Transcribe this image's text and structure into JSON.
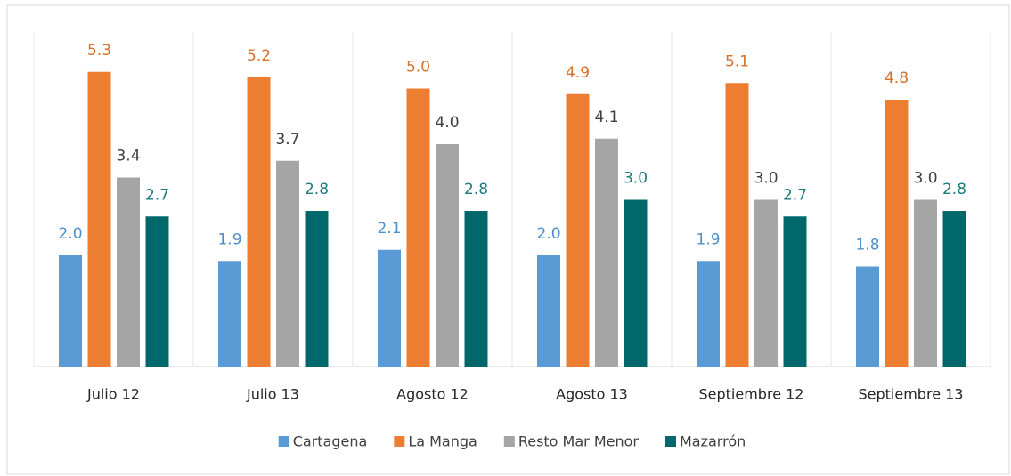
{
  "chart_data": {
    "type": "bar",
    "categories": [
      "Julio 12",
      "Julio 13",
      "Agosto 12",
      "Agosto 13",
      "Septiembre 12",
      "Septiembre 13"
    ],
    "series": [
      {
        "name": "Cartagena",
        "color": "#5b9bd5",
        "label_color": "#4f8fc9",
        "values": [
          2.0,
          1.9,
          2.1,
          2.0,
          1.9,
          1.8
        ],
        "value_labels": [
          "2.0",
          "1.9",
          "2.1",
          "2.0",
          "1.9",
          "1.8"
        ]
      },
      {
        "name": "La Manga",
        "color": "#ed7d31",
        "label_color": "#d7702a",
        "values": [
          5.3,
          5.2,
          5.0,
          4.9,
          5.1,
          4.8
        ],
        "value_labels": [
          "5.3",
          "5.2",
          "5.0",
          "4.9",
          "5.1",
          "4.8"
        ]
      },
      {
        "name": "Resto Mar Menor",
        "color": "#a5a5a5",
        "label_color": "#404040",
        "values": [
          3.4,
          3.7,
          4.0,
          4.1,
          3.0,
          3.0
        ],
        "value_labels": [
          "3.4",
          "3.7",
          "4.0",
          "4.1",
          "3.0",
          "3.0"
        ]
      },
      {
        "name": "Mazarrón",
        "color": "#00686b",
        "label_color": "#1b7b80",
        "values": [
          2.7,
          2.8,
          2.8,
          3.0,
          2.7,
          2.8
        ],
        "value_labels": [
          "2.7",
          "2.8",
          "2.8",
          "3.0",
          "2.7",
          "2.8"
        ]
      }
    ]
  }
}
